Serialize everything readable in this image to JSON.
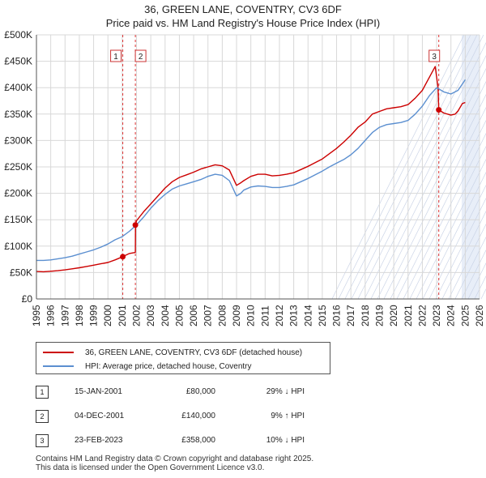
{
  "chart_data": {
    "type": "line",
    "title": "36, GREEN LANE, COVENTRY, CV3 6DF",
    "subtitle": "Price paid vs. HM Land Registry's House Price Index (HPI)",
    "xlim": [
      1995,
      2026
    ],
    "ylim": [
      0,
      500000
    ],
    "x_ticks": [
      1995,
      1996,
      1997,
      1998,
      1999,
      2000,
      2001,
      2002,
      2003,
      2004,
      2005,
      2006,
      2007,
      2008,
      2009,
      2010,
      2011,
      2012,
      2013,
      2014,
      2015,
      2016,
      2017,
      2018,
      2019,
      2020,
      2021,
      2022,
      2023,
      2024,
      2025,
      2026
    ],
    "y_ticks": [
      {
        "value": 0,
        "label": "£0"
      },
      {
        "value": 50000,
        "label": "£50K"
      },
      {
        "value": 100000,
        "label": "£100K"
      },
      {
        "value": 150000,
        "label": "£150K"
      },
      {
        "value": 200000,
        "label": "£200K"
      },
      {
        "value": 250000,
        "label": "£250K"
      },
      {
        "value": 300000,
        "label": "£300K"
      },
      {
        "value": 350000,
        "label": "£350K"
      },
      {
        "value": 400000,
        "label": "£400K"
      },
      {
        "value": 450000,
        "label": "£450K"
      },
      {
        "value": 500000,
        "label": "£500K"
      }
    ],
    "grid": true,
    "series": [
      {
        "name": "36, GREEN LANE, COVENTRY, CV3 6DF (detached house)",
        "color": "#cc0000",
        "x": [
          1995.0,
          1995.5,
          1996.0,
          1996.5,
          1997.0,
          1997.5,
          1998.0,
          1998.5,
          1999.0,
          1999.5,
          2000.0,
          2000.5,
          2001.04,
          2001.5,
          2001.92,
          2001.93,
          2002.0,
          2002.5,
          2003.0,
          2003.5,
          2004.0,
          2004.5,
          2005.0,
          2005.5,
          2006.0,
          2006.5,
          2007.0,
          2007.5,
          2008.0,
          2008.5,
          2009.0,
          2009.3,
          2009.5,
          2010.0,
          2010.5,
          2011.0,
          2011.5,
          2012.0,
          2012.5,
          2013.0,
          2013.5,
          2014.0,
          2014.5,
          2015.0,
          2015.5,
          2016.0,
          2016.5,
          2017.0,
          2017.5,
          2018.0,
          2018.5,
          2019.0,
          2019.5,
          2020.0,
          2020.5,
          2021.0,
          2021.5,
          2022.0,
          2022.5,
          2022.9,
          2023.1,
          2023.15,
          2023.5,
          2024.0,
          2024.3,
          2024.5,
          2024.8,
          2025.0
        ],
        "values": [
          52000,
          51500,
          52500,
          53500,
          55000,
          57000,
          59000,
          61500,
          64000,
          66500,
          69000,
          74000,
          80000,
          86000,
          88000,
          140000,
          148000,
          165000,
          180000,
          195000,
          210000,
          222000,
          230000,
          235000,
          240000,
          246000,
          250000,
          254000,
          252000,
          244000,
          215000,
          220000,
          224000,
          232000,
          236000,
          236000,
          233000,
          234000,
          236000,
          239000,
          245000,
          251000,
          258000,
          265000,
          275000,
          285000,
          297000,
          310000,
          325000,
          335000,
          350000,
          355000,
          360000,
          362000,
          364000,
          368000,
          380000,
          395000,
          420000,
          440000,
          400000,
          358000,
          352000,
          348000,
          350000,
          356000,
          370000,
          372000
        ]
      },
      {
        "name": "HPI: Average price, detached house, Coventry",
        "color": "#5b8fd0",
        "x": [
          1995.0,
          1995.5,
          1996.0,
          1996.5,
          1997.0,
          1997.5,
          1998.0,
          1998.5,
          1999.0,
          1999.5,
          2000.0,
          2000.5,
          2001.0,
          2001.5,
          2002.0,
          2002.5,
          2003.0,
          2003.5,
          2004.0,
          2004.5,
          2005.0,
          2005.5,
          2006.0,
          2006.5,
          2007.0,
          2007.5,
          2008.0,
          2008.5,
          2009.0,
          2009.3,
          2009.5,
          2010.0,
          2010.5,
          2011.0,
          2011.5,
          2012.0,
          2012.5,
          2013.0,
          2013.5,
          2014.0,
          2014.5,
          2015.0,
          2015.5,
          2016.0,
          2016.5,
          2017.0,
          2017.5,
          2018.0,
          2018.5,
          2019.0,
          2019.5,
          2020.0,
          2020.5,
          2021.0,
          2021.5,
          2022.0,
          2022.5,
          2023.0,
          2023.5,
          2024.0,
          2024.5,
          2025.0
        ],
        "values": [
          73000,
          73000,
          74000,
          76000,
          78000,
          81000,
          85000,
          89000,
          93000,
          98000,
          104000,
          112000,
          118000,
          128000,
          140000,
          155000,
          172000,
          186000,
          198000,
          208000,
          214000,
          218000,
          222000,
          226000,
          232000,
          236000,
          234000,
          224000,
          195000,
          200000,
          206000,
          212000,
          214000,
          213000,
          211000,
          211000,
          213000,
          216000,
          222000,
          228000,
          235000,
          242000,
          250000,
          257000,
          264000,
          273000,
          285000,
          300000,
          315000,
          325000,
          330000,
          332000,
          334000,
          338000,
          350000,
          365000,
          385000,
          400000,
          392000,
          388000,
          395000,
          415000
        ]
      }
    ],
    "sales": [
      {
        "id": "1",
        "x": 2001.04,
        "value": 80000
      },
      {
        "id": "2",
        "x": 2001.92,
        "value": 140000
      },
      {
        "id": "3",
        "x": 2023.15,
        "value": 358000
      }
    ],
    "forecast_start": 2024.75
  },
  "legend": {
    "property_label": "36, GREEN LANE, COVENTRY, CV3 6DF (detached house)",
    "hpi_label": "HPI: Average price, detached house, Coventry"
  },
  "transactions": [
    {
      "num": "1",
      "date": "15-JAN-2001",
      "price": "£80,000",
      "hpi": "29% ↓ HPI"
    },
    {
      "num": "2",
      "date": "04-DEC-2001",
      "price": "£140,000",
      "hpi": "9% ↑ HPI"
    },
    {
      "num": "3",
      "date": "23-FEB-2023",
      "price": "£358,000",
      "hpi": "10% ↓ HPI"
    }
  ],
  "footer": {
    "line1": "Contains HM Land Registry data © Crown copyright and database right 2025.",
    "line2": "This data is licensed under the Open Government Licence v3.0."
  }
}
